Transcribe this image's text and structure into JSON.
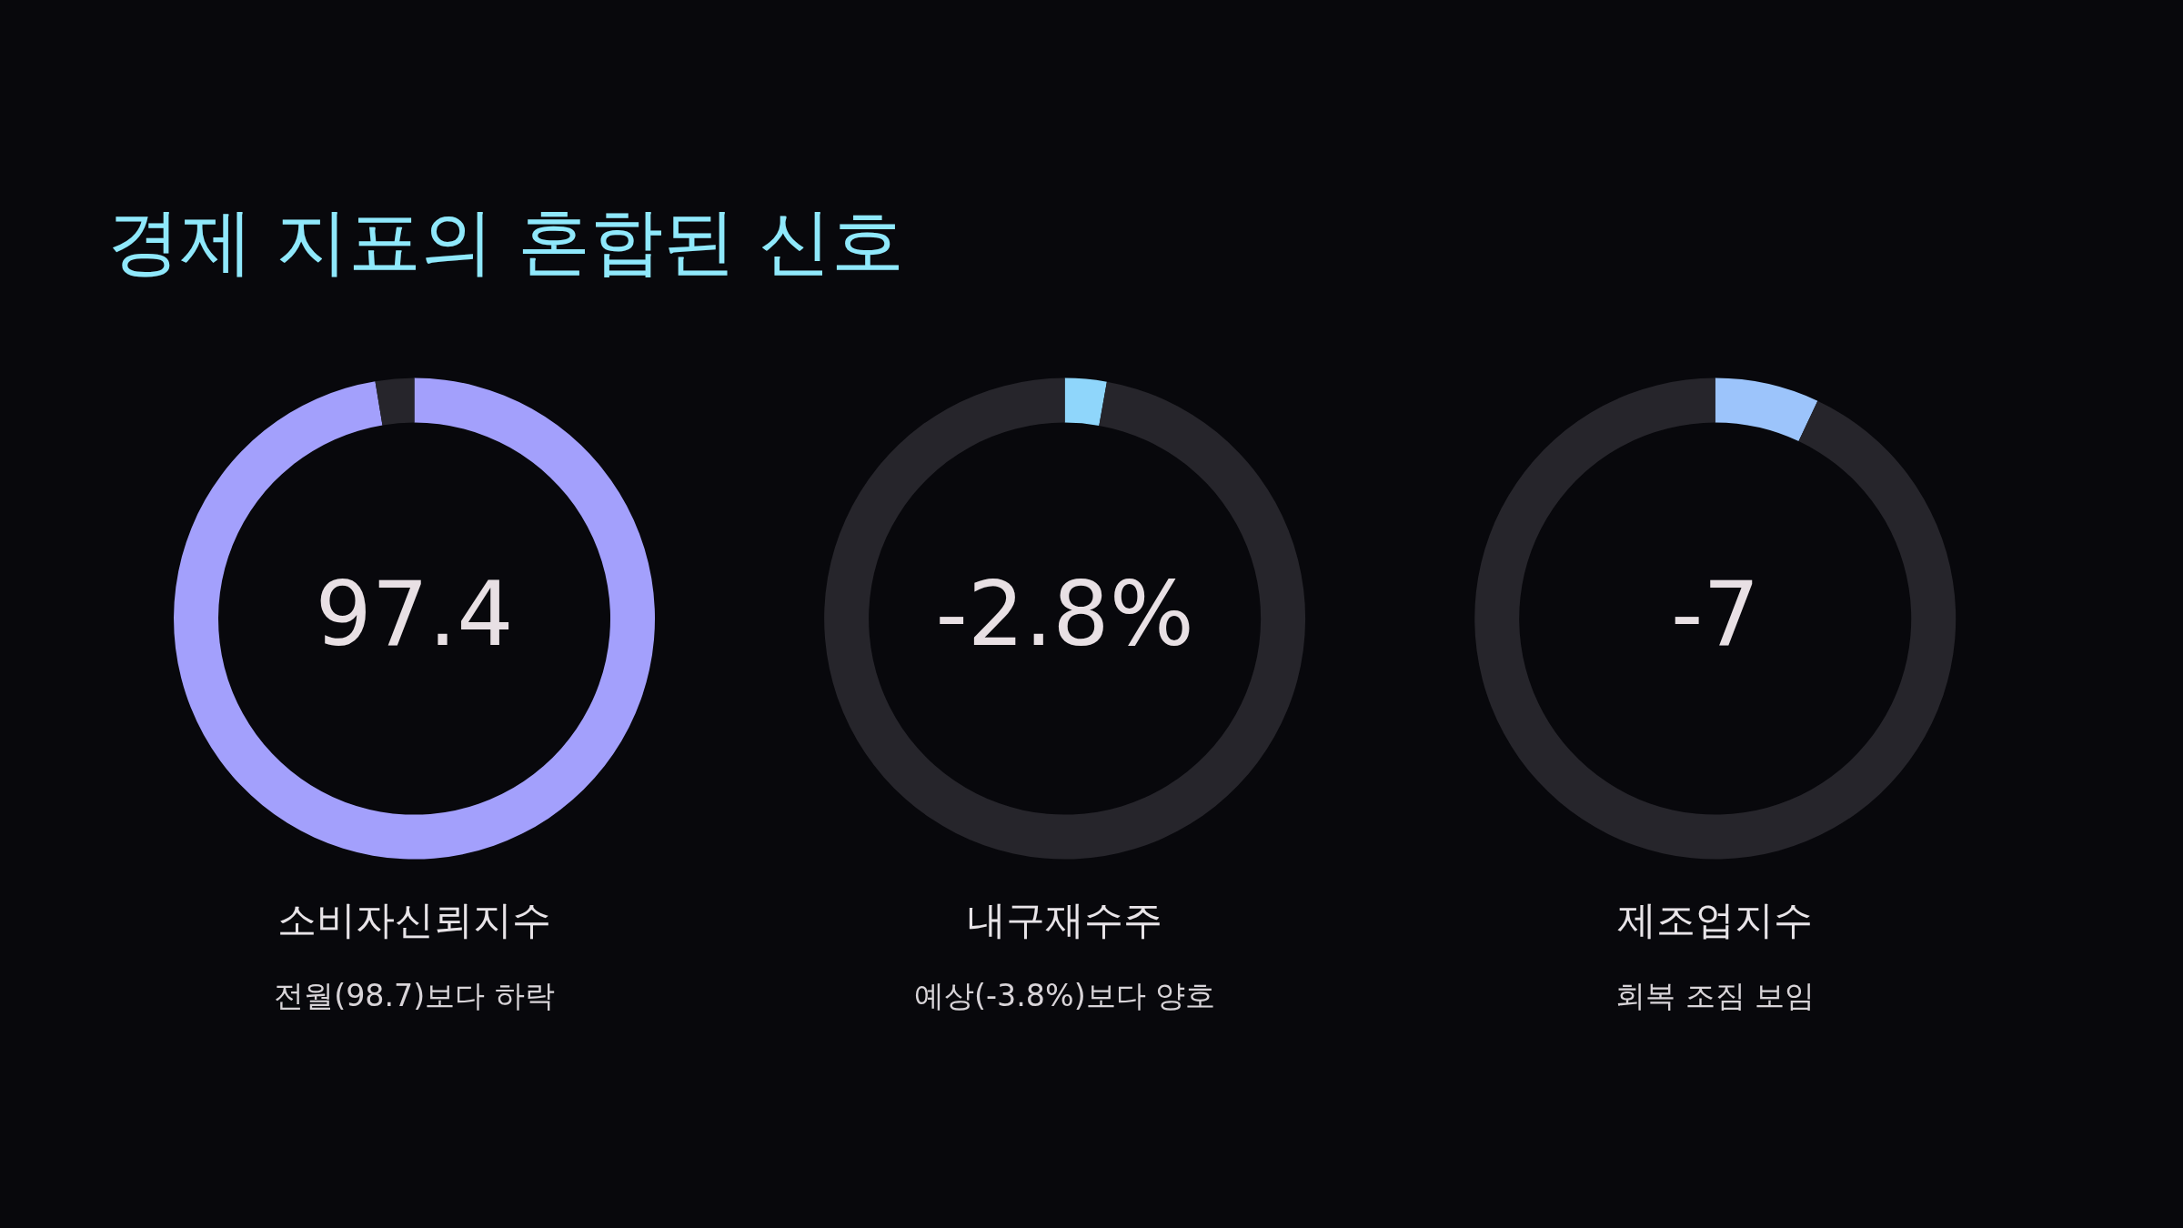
{
  "chart_data": [
    {
      "type": "other",
      "title": "경제 지표의 혼합된 신호"
    },
    {
      "type": "donut",
      "title": "소비자신뢰지수",
      "subtitle": "전월(98.7)보다 하락",
      "annotations": [
        "97.4"
      ],
      "categories": [
        null,
        null
      ],
      "values": [
        97.4,
        2.6
      ],
      "colors": [
        "#a3a0fc",
        "#26252b"
      ]
    },
    {
      "type": "donut",
      "title": "내구재수주",
      "subtitle": "예상(-3.8%)보다 양호",
      "annotations": [
        "-2.8%"
      ],
      "categories": [
        null,
        null
      ],
      "values": [
        2.8,
        97.2
      ],
      "colors": [
        "#8fd6fb",
        "#26252b"
      ]
    },
    {
      "type": "donut",
      "title": "제조업지수",
      "subtitle": "회복 조짐 보임",
      "annotations": [
        "-7"
      ],
      "categories": [
        null,
        null
      ],
      "values": [
        7,
        93
      ],
      "colors": [
        "#9cc4fb",
        "#26252b"
      ]
    }
  ]
}
